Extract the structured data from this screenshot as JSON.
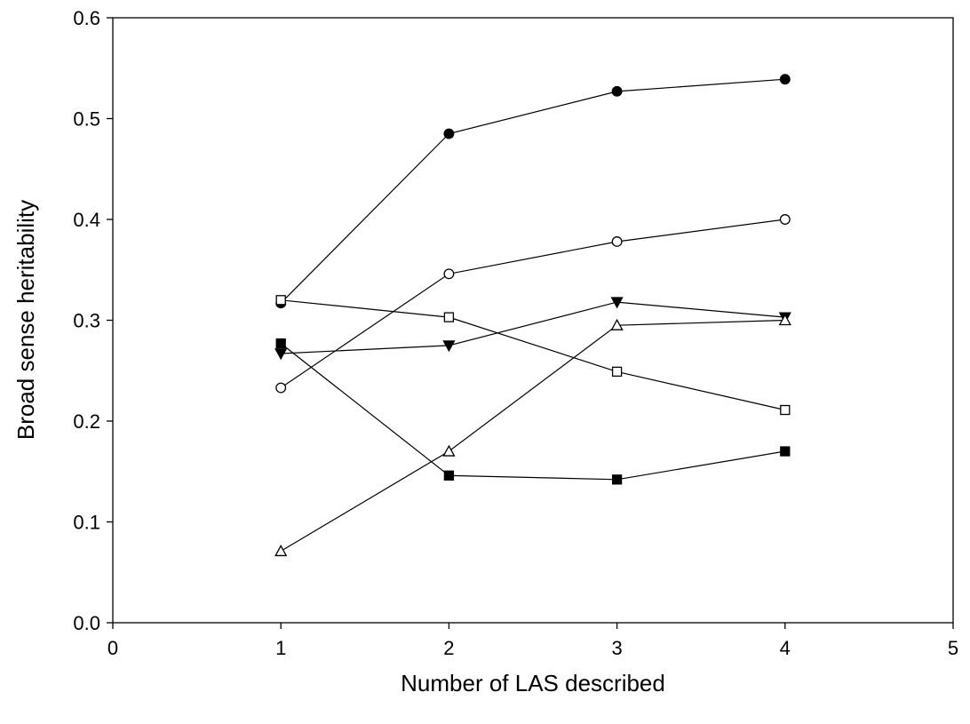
{
  "chart_data": {
    "type": "line",
    "title": "",
    "xlabel": "Number of LAS described",
    "ylabel": "Broad sense heritability",
    "xlim": [
      0,
      5
    ],
    "ylim": [
      0.0,
      0.6
    ],
    "x_ticks": [
      "0",
      "1",
      "2",
      "3",
      "4",
      "5"
    ],
    "y_ticks": [
      "0.0",
      "0.1",
      "0.2",
      "0.3",
      "0.4",
      "0.5",
      "0.6"
    ],
    "grid": false,
    "legend": "none",
    "series": [
      {
        "marker": "filled-circle",
        "color": "#000000",
        "x": [
          1,
          2,
          3,
          4
        ],
        "y": [
          0.317,
          0.485,
          0.527,
          0.539
        ]
      },
      {
        "marker": "open-circle",
        "color": "#000000",
        "x": [
          1,
          2,
          3,
          4
        ],
        "y": [
          0.233,
          0.346,
          0.378,
          0.4
        ]
      },
      {
        "marker": "filled-triangle-down",
        "color": "#000000",
        "x": [
          1,
          2,
          3,
          4
        ],
        "y": [
          0.267,
          0.275,
          0.318,
          0.303
        ]
      },
      {
        "marker": "open-triangle-up",
        "color": "#000000",
        "x": [
          1,
          2,
          3,
          4
        ],
        "y": [
          0.071,
          0.17,
          0.295,
          0.3
        ]
      },
      {
        "marker": "open-square",
        "color": "#000000",
        "x": [
          1,
          2,
          3,
          4
        ],
        "y": [
          0.32,
          0.303,
          0.249,
          0.211
        ]
      },
      {
        "marker": "filled-square",
        "color": "#000000",
        "x": [
          1,
          2,
          3,
          4
        ],
        "y": [
          0.277,
          0.146,
          0.142,
          0.17
        ]
      }
    ]
  }
}
